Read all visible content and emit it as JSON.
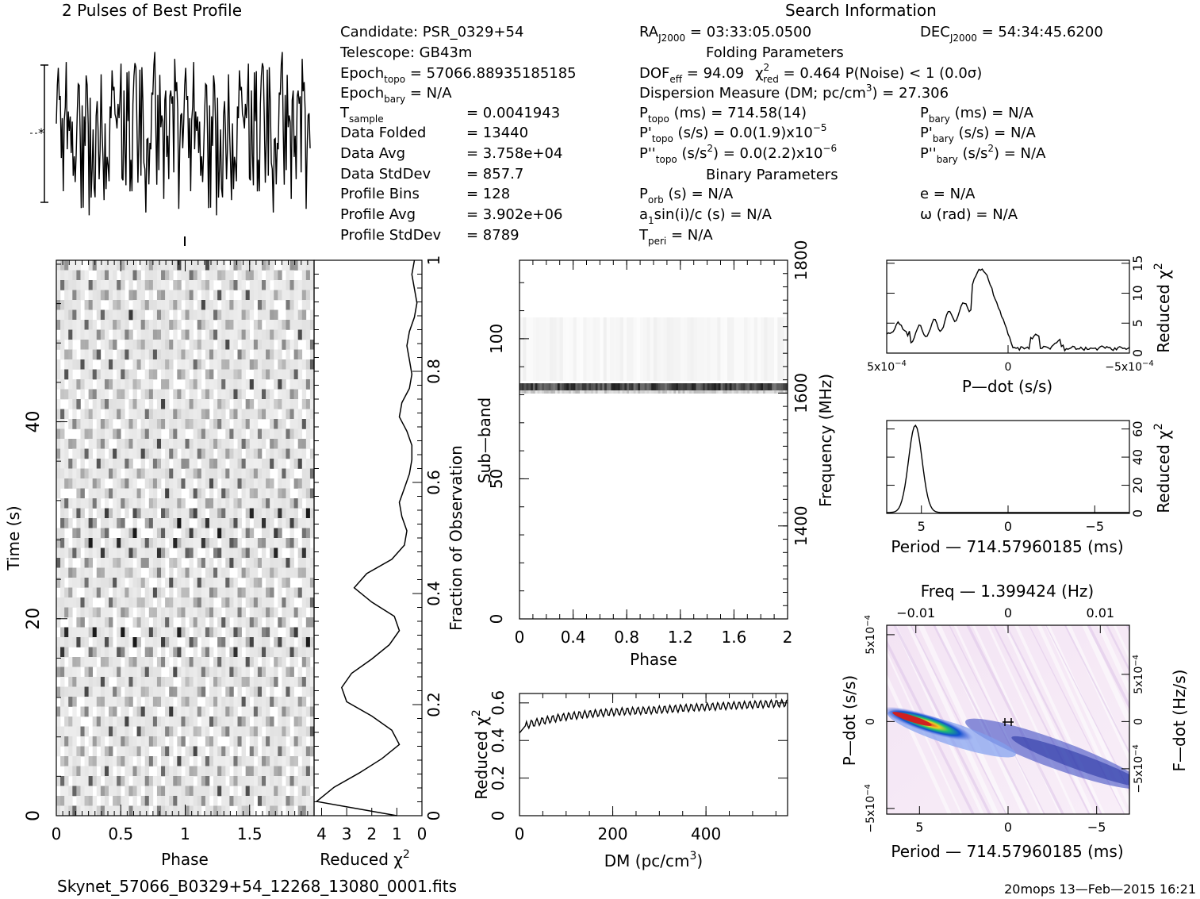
{
  "header": {
    "profile_title": "2 Pulses of Best Profile",
    "search_title": "Search Information",
    "folding_title": "Folding Parameters",
    "binary_title": "Binary Parameters",
    "filename": "Skynet_57066_B0329+54_12268_13080_0001.fits",
    "footer_right": "20mops 13—Feb—2015 16:21"
  },
  "info_left": [
    {
      "label": "Candidate:  PSR_0329+54",
      "value": ""
    },
    {
      "label": "Telescope:  GB43m",
      "value": ""
    },
    {
      "label": "Epoch",
      "sub": "topo",
      "value": " = 57066.88935185185"
    },
    {
      "label": "Epoch",
      "sub": "bary",
      "value": " = N/A"
    },
    {
      "label": "T",
      "sub": "sample",
      "value": "=   0.0041943",
      "col": true
    },
    {
      "label": "Data Folded",
      "value": "=   13440",
      "col": true
    },
    {
      "label": "Data Avg",
      "value": "=   3.758e+04",
      "col": true
    },
    {
      "label": "Data StdDev",
      "value": "=   857.7",
      "col": true
    },
    {
      "label": "Profile Bins",
      "value": "=   128",
      "col": true
    },
    {
      "label": "Profile Avg",
      "value": "=   3.902e+06",
      "col": true
    },
    {
      "label": "Profile StdDev",
      "value": "=   8789",
      "col": true
    }
  ],
  "info_mid": {
    "ra": "RA",
    "ra_sub": "J2000",
    "ra_val": " = 03:33:05.0500",
    "dec": "DEC",
    "dec_sub": "J2000",
    "dec_val": " = 54:34:45.6200",
    "dof": "DOF",
    "dof_sub": "eff",
    "dof_val": " = 94.09",
    "chi": "χ",
    "chi_sup": "2",
    "chi_sub": "red",
    "chi_val": " = 0.464  P(Noise) < 1   (0.0σ)",
    "dm_line": "Dispersion Measure (DM; pc/cm",
    "dm_sup": "3",
    "dm_val": ") = 27.306",
    "ptopo": "P",
    "ptopo_sub": "topo",
    "ptopo_val": " (ms) =  714.58(14)",
    "pbary": "P",
    "pbary_sub": "bary",
    "pbary_val": " (ms) = N/A",
    "pdtopo": "P'",
    "pdtopo_sub": "topo",
    "pdtopo_val": " (s/s) = 0.0(1.9)x10",
    "pdtopo_exp": "−5",
    "pdbary": "P'",
    "pdbary_sub": "bary",
    "pdbary_val": " (s/s) = N/A",
    "pddtopo": "P''",
    "pddtopo_sub": "topo",
    "pddtopo_val": " (s/s",
    "pddtopo_sup": "2",
    "pddtopo_val2": ") = 0.0(2.2)x10",
    "pddtopo_exp": "−6",
    "pddbary": "P''",
    "pddbary_sub": "bary",
    "pddbary_val": " (s/s",
    "pddbary_sup": "2",
    "pddbary_val2": ") = N/A",
    "porb": "P",
    "porb_sub": "orb",
    "porb_val": " (s) = N/A",
    "ecc": "e = N/A",
    "asini": "a",
    "asini_sub": "1",
    "asini_val": "sin(i)/c (s) = N/A",
    "omega": "ω (rad) = N/A",
    "tperi": "T",
    "tperi_sub": "peri",
    "tperi_val": " = N/A"
  },
  "chart_data": [
    {
      "name": "profile",
      "type": "line",
      "title": "2 Pulses of Best Profile",
      "description_values": "noisy profile, 256 points over 2 pulses",
      "xlim": [
        0,
        2
      ],
      "seed": 7
    },
    {
      "name": "time-phase",
      "type": "heatmap",
      "xlabel": "Phase",
      "ylabel": "Time (s)",
      "xticks": [
        "0",
        "0.5",
        "1",
        "1.5"
      ],
      "yticks": [
        "0",
        "20",
        "40"
      ],
      "xlim": [
        0,
        2
      ],
      "ylim": [
        0,
        56.4
      ]
    },
    {
      "name": "time-chi2",
      "type": "line",
      "xlabel": "Reduced χ",
      "xlabel_sup": "2",
      "ylabel": "Fraction of Observation",
      "xticks": [
        "4",
        "3",
        "2",
        "1",
        "0"
      ],
      "yticks": [
        "0",
        "0.2",
        "0.4",
        "0.6",
        "0.8",
        "1"
      ],
      "x": [
        1.0,
        4.2,
        3.5,
        2.5,
        1.6,
        0.9,
        1.2,
        2.0,
        3.0,
        3.2,
        2.8,
        2.0,
        1.3,
        0.9,
        1.1,
        2.0,
        2.7,
        2.2,
        1.2,
        0.7,
        0.6,
        0.8,
        0.9,
        0.7,
        0.5,
        0.4,
        0.4,
        0.6,
        0.9,
        0.8,
        0.5,
        0.4,
        0.5,
        0.6,
        0.5,
        0.3,
        0.2,
        0.3,
        0.4,
        0.3
      ],
      "xlim": [
        4.3,
        0
      ],
      "ylim": [
        0,
        1
      ]
    },
    {
      "name": "subband-phase",
      "type": "heatmap",
      "xlabel": "Phase",
      "ylabel": "Sub—band",
      "y2label": "Frequency (MHz)",
      "xticks": [
        "0",
        "0.4",
        "0.8",
        "1.2",
        "1.6",
        "2"
      ],
      "yticks": [
        "0",
        "50",
        "100"
      ],
      "y2ticks": [
        "1400",
        "1600",
        "1800"
      ],
      "xlim": [
        0,
        2
      ],
      "ylim": [
        0,
        128
      ]
    },
    {
      "name": "dm-chi2",
      "type": "line",
      "xlabel": "DM (pc/cm",
      "xlabel_sup": "3",
      "xlabel_end": ")",
      "ylabel": "Reduced χ",
      "ylabel_sup": "2",
      "xticks": [
        "0",
        "200",
        "400"
      ],
      "yticks": [
        "0",
        "0.2",
        "0.4",
        "0.6"
      ],
      "xlim": [
        0,
        575
      ],
      "ylim": [
        0,
        0.65
      ]
    },
    {
      "name": "pdot-chi2",
      "type": "line",
      "xlabel": "P—dot (s/s)",
      "ylabel": "Reduced χ",
      "ylabel_sup": "2",
      "xticks": [
        "5x10",
        "0",
        "−5x10"
      ],
      "xtick_exp": "−4",
      "yticks": [
        "0",
        "5",
        "10",
        "15"
      ],
      "ylim": [
        0,
        15.5
      ]
    },
    {
      "name": "period-chi2",
      "type": "line",
      "xlabel": "Period — 714.57960185 (ms)",
      "ylabel": "Reduced χ",
      "ylabel_sup": "2",
      "xticks": [
        "5",
        "0",
        "−5"
      ],
      "yticks": [
        "0",
        "20",
        "40",
        "60"
      ],
      "xlim": [
        7,
        -7
      ],
      "ylim": [
        0,
        66
      ]
    },
    {
      "name": "period-pdot",
      "type": "heatmap",
      "title": "Freq — 1.399424 (Hz)",
      "xlabel": "Period — 714.57960185 (ms)",
      "ylabel": "P—dot (s/s)",
      "y2label": "F—dot (Hz/s)",
      "xticks": [
        "5",
        "0",
        "−5"
      ],
      "x2ticks": [
        "−0.01",
        "0",
        "0.01"
      ],
      "yticks_left": [
        "5x10",
        "0",
        "−5x10"
      ],
      "ytick_exp": "−4",
      "yticks_right": [
        "5x10",
        "0",
        "−5x10"
      ],
      "ytick_right_exp": "−4"
    }
  ],
  "colors": {
    "ink": "#000000",
    "paper": "#ffffff"
  }
}
